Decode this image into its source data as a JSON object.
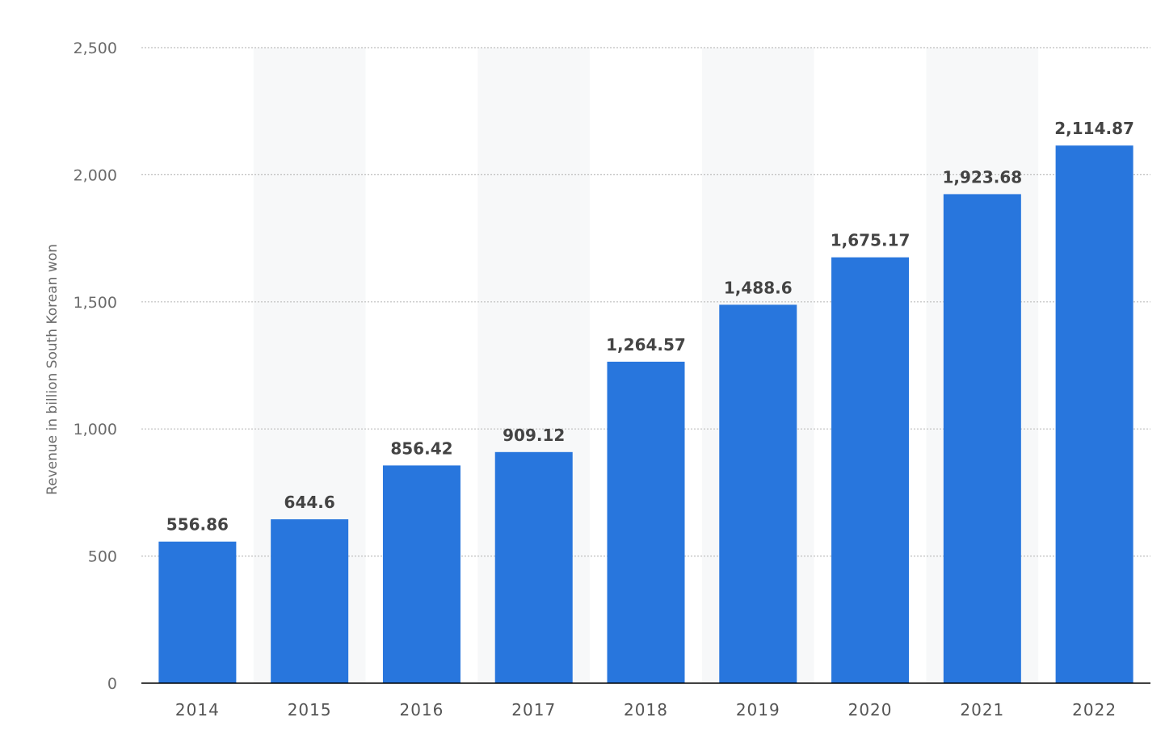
{
  "colors": {
    "bar": "#2876dd",
    "band": "#f7f8f9",
    "grid": "#bdbdbd",
    "axis": "#000000"
  },
  "chart_data": {
    "type": "bar",
    "title": "",
    "xlabel": "",
    "ylabel": "Revenue in billion South Korean won",
    "categories": [
      "2014",
      "2015",
      "2016",
      "2017",
      "2018",
      "2019",
      "2020",
      "2021",
      "2022"
    ],
    "values": [
      556.86,
      644.6,
      856.42,
      909.12,
      1264.57,
      1488.6,
      1675.17,
      1923.68,
      2114.87
    ],
    "value_labels": [
      "556.86",
      "644.6",
      "856.42",
      "909.12",
      "1,264.57",
      "1,488.6",
      "1,675.17",
      "1,923.68",
      "2,114.87"
    ],
    "ylim": [
      0,
      2500
    ],
    "yticks": [
      0,
      500,
      1000,
      1500,
      2000,
      2500
    ],
    "ytick_labels": [
      "0",
      "500",
      "1,000",
      "1,500",
      "2,000",
      "2,500"
    ],
    "grid": true,
    "legend": "none"
  }
}
